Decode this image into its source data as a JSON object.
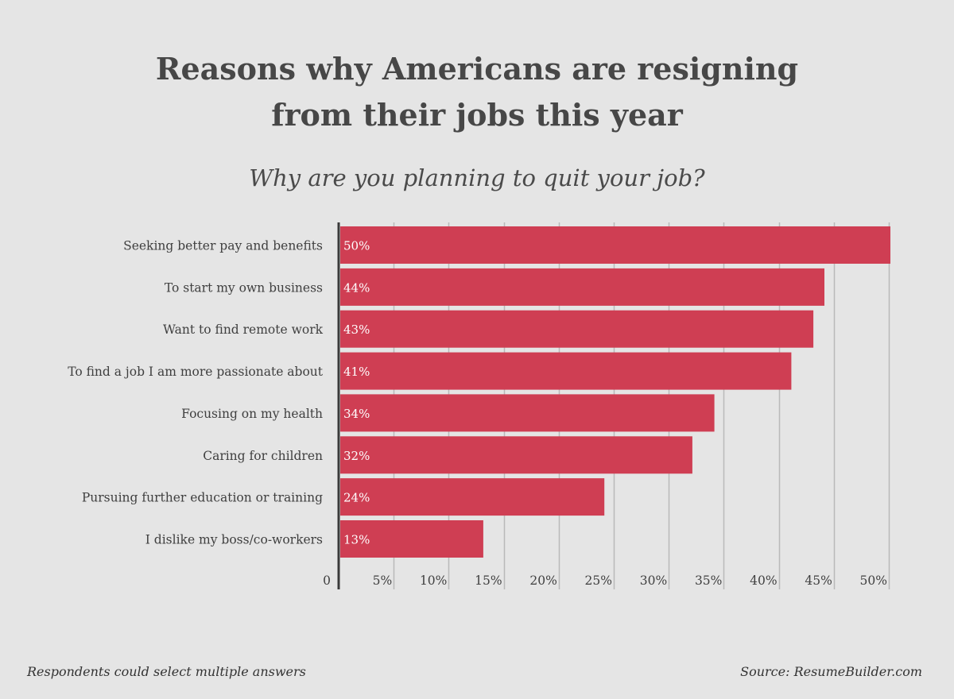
{
  "header": {
    "title_line1": "Reasons why Americans are resigning",
    "title_line2": "from their jobs this year",
    "subtitle": "Why are you planning to quit your job?"
  },
  "footer": {
    "note": "Respondents could select multiple answers",
    "source": "Source: ResumeBuilder.com"
  },
  "colors": {
    "bar": "#cf3e53",
    "grid": "#b9b9b9",
    "axis": "#3a3a3a",
    "background": "#e5e5e5",
    "label_text": "#3f3f3f",
    "bar_label_text": "#ffffff"
  },
  "chart_data": {
    "type": "bar",
    "orientation": "horizontal",
    "title": "Reasons why Americans are resigning from their jobs this year",
    "subtitle": "Why are you planning to quit your job?",
    "categories": [
      "Seeking better pay and benefits",
      "To start my own business",
      "Want to find remote work",
      "To find a job I am more passionate about",
      "Focusing on my health",
      "Caring for children",
      "Pursuing further education or training",
      "I dislike my boss/co-workers"
    ],
    "values": [
      50,
      44,
      43,
      41,
      34,
      32,
      24,
      13
    ],
    "value_labels": [
      "50%",
      "44%",
      "43%",
      "41%",
      "34%",
      "32%",
      "24%",
      "13%"
    ],
    "unit": "%",
    "xlim": [
      0,
      50
    ],
    "x_ticks": [
      0,
      5,
      10,
      15,
      20,
      25,
      30,
      35,
      40,
      45,
      50
    ],
    "x_tick_labels": [
      "0",
      "5%",
      "10%",
      "15%",
      "20%",
      "25%",
      "30%",
      "35%",
      "40%",
      "45%",
      "50%"
    ],
    "grid": true,
    "legend": "none"
  }
}
